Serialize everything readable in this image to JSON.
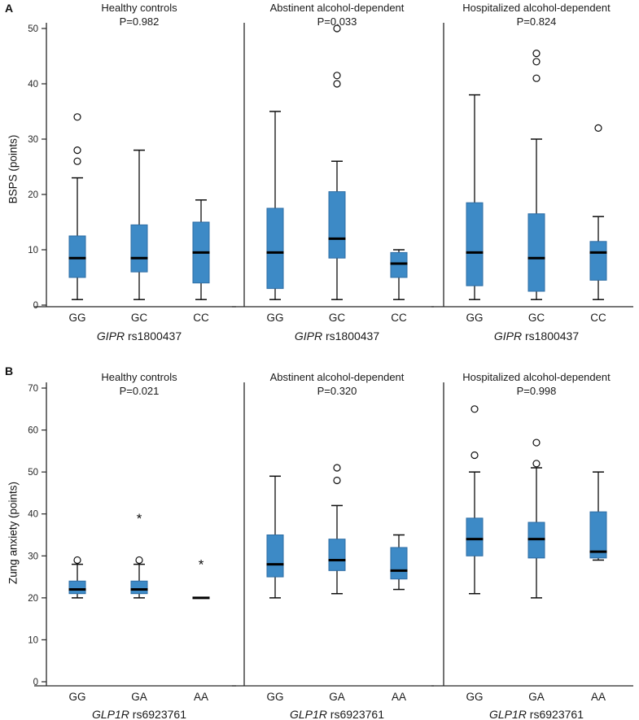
{
  "chart_data": {
    "type": "boxplot",
    "layout": "2 rows x 3 panels",
    "grid": false,
    "box_fill": "#3d8ac6",
    "box_stroke": "#2e6da4",
    "median_color": "#000000",
    "axis_color": "#262626",
    "outlier_marker": "circle",
    "extreme_marker": "*",
    "rows": [
      {
        "label": "A",
        "ylabel": "BSPS (points)",
        "ylim": [
          0,
          50
        ],
        "yticks": [
          0,
          10,
          20,
          30,
          40,
          50
        ],
        "categories": [
          "GG",
          "GC",
          "CC"
        ],
        "xlabel": {
          "gene": "GIPR",
          "variant": "rs1800437"
        },
        "panels": [
          {
            "title": "Healthy controls",
            "p_value": "P=0.982",
            "boxes": [
              {
                "category": "GG",
                "whisker_low": 1,
                "q1": 5,
                "median": 8.5,
                "q3": 12.5,
                "whisker_high": 23,
                "outliers": [
                  26,
                  28,
                  34
                ],
                "extremes": []
              },
              {
                "category": "GC",
                "whisker_low": 1,
                "q1": 6,
                "median": 8.5,
                "q3": 14.5,
                "whisker_high": 28,
                "outliers": [],
                "extremes": []
              },
              {
                "category": "CC",
                "whisker_low": 1,
                "q1": 4,
                "median": 9.5,
                "q3": 15,
                "whisker_high": 19,
                "outliers": [],
                "extremes": []
              }
            ]
          },
          {
            "title": "Abstinent alcohol-dependent",
            "p_value": "P=0.033",
            "boxes": [
              {
                "category": "GG",
                "whisker_low": 1,
                "q1": 3,
                "median": 9.5,
                "q3": 17.5,
                "whisker_high": 35,
                "outliers": [],
                "extremes": []
              },
              {
                "category": "GC",
                "whisker_low": 1,
                "q1": 8.5,
                "median": 12,
                "q3": 20.5,
                "whisker_high": 26,
                "outliers": [
                  40,
                  41.5,
                  50
                ],
                "extremes": []
              },
              {
                "category": "CC",
                "whisker_low": 1,
                "q1": 5,
                "median": 7.5,
                "q3": 9.5,
                "whisker_high": 10,
                "outliers": [],
                "extremes": []
              }
            ]
          },
          {
            "title": "Hospitalized alcohol-dependent",
            "p_value": "P=0.824",
            "boxes": [
              {
                "category": "GG",
                "whisker_low": 1,
                "q1": 3.5,
                "median": 9.5,
                "q3": 18.5,
                "whisker_high": 38,
                "outliers": [],
                "extremes": []
              },
              {
                "category": "GC",
                "whisker_low": 1,
                "q1": 2.5,
                "median": 8.5,
                "q3": 16.5,
                "whisker_high": 30,
                "outliers": [
                  41,
                  44,
                  45.5
                ],
                "extremes": []
              },
              {
                "category": "CC",
                "whisker_low": 1,
                "q1": 4.5,
                "median": 9.5,
                "q3": 11.5,
                "whisker_high": 16,
                "outliers": [
                  32
                ],
                "extremes": []
              }
            ]
          }
        ]
      },
      {
        "label": "B",
        "ylabel": "Zung anxiety (points)",
        "ylim": [
          0,
          70
        ],
        "yticks": [
          0,
          10,
          20,
          30,
          40,
          50,
          60,
          70
        ],
        "categories": [
          "GG",
          "GA",
          "AA"
        ],
        "xlabel": {
          "gene": "GLP1R",
          "variant": "rs6923761"
        },
        "panels": [
          {
            "title": "Healthy controls",
            "p_value": "P=0.021",
            "boxes": [
              {
                "category": "GG",
                "whisker_low": 20,
                "q1": 21,
                "median": 22,
                "q3": 24,
                "whisker_high": 28,
                "outliers": [
                  29
                ],
                "extremes": []
              },
              {
                "category": "GA",
                "whisker_low": 20,
                "q1": 21,
                "median": 22,
                "q3": 24,
                "whisker_high": 28,
                "outliers": [
                  29
                ],
                "extremes": [
                  39
                ]
              },
              {
                "category": "AA",
                "whisker_low": 20,
                "q1": 20,
                "median": 20,
                "q3": 20,
                "whisker_high": 20,
                "outliers": [],
                "extremes": [
                  28
                ]
              }
            ]
          },
          {
            "title": "Abstinent alcohol-dependent",
            "p_value": "P=0.320",
            "boxes": [
              {
                "category": "GG",
                "whisker_low": 20,
                "q1": 25,
                "median": 28,
                "q3": 35,
                "whisker_high": 49,
                "outliers": [],
                "extremes": []
              },
              {
                "category": "GA",
                "whisker_low": 21,
                "q1": 26.5,
                "median": 29,
                "q3": 34,
                "whisker_high": 42,
                "outliers": [
                  48,
                  51
                ],
                "extremes": []
              },
              {
                "category": "AA",
                "whisker_low": 22,
                "q1": 24.5,
                "median": 26.5,
                "q3": 32,
                "whisker_high": 35,
                "outliers": [],
                "extremes": []
              }
            ]
          },
          {
            "title": "Hospitalized alcohol-dependent",
            "p_value": "P=0.998",
            "boxes": [
              {
                "category": "GG",
                "whisker_low": 21,
                "q1": 30,
                "median": 34,
                "q3": 39,
                "whisker_high": 50,
                "outliers": [
                  54,
                  65
                ],
                "extremes": []
              },
              {
                "category": "GA",
                "whisker_low": 20,
                "q1": 29.5,
                "median": 34,
                "q3": 38,
                "whisker_high": 51,
                "outliers": [
                  52,
                  57
                ],
                "extremes": []
              },
              {
                "category": "AA",
                "whisker_low": 29,
                "q1": 29.5,
                "median": 31,
                "q3": 40.5,
                "whisker_high": 50,
                "outliers": [],
                "extremes": []
              }
            ]
          }
        ]
      }
    ]
  }
}
